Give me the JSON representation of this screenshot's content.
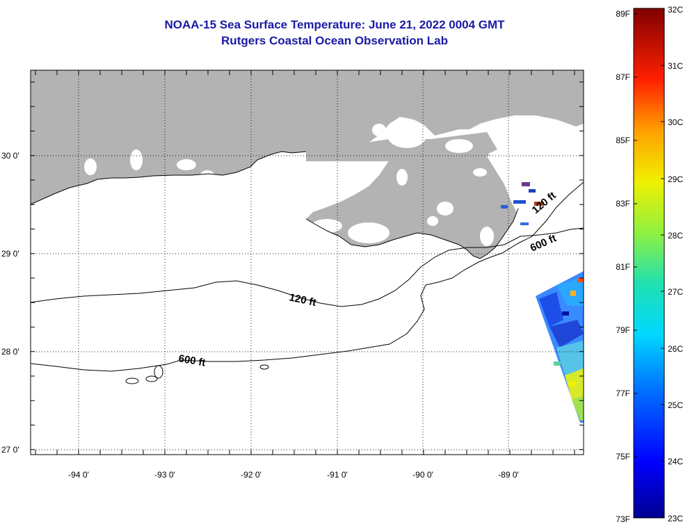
{
  "header": {
    "title": "NOAA-15 Sea Surface Temperature:  June 21, 2022 0004 GMT",
    "subtitle": "Rutgers Coastal Ocean Observation Lab"
  },
  "map": {
    "lon_labels": [
      "-94 0'",
      "-93 0'",
      "-92 0'",
      "-91 0'",
      "-90 0'",
      "-89 0'"
    ],
    "lat_labels": [
      "30 0'",
      "29 0'",
      "28 0'",
      "27 0'"
    ],
    "contour_labels": {
      "c120_west": "120 ft",
      "c600_west": "600 ft",
      "c600_east": "600 ft",
      "c120_east": "120 ft"
    },
    "colors": {
      "land": "#b3b3b3",
      "ocean": "#ffffff",
      "contour": "#000000"
    }
  },
  "colorbar": {
    "fahrenheit_labels": [
      "89F",
      "87F",
      "85F",
      "83F",
      "81F",
      "79F",
      "77F",
      "75F",
      "73F"
    ],
    "celsius_labels": [
      "32C",
      "31C",
      "30C",
      "29C",
      "28C",
      "27C",
      "26C",
      "25C",
      "24C",
      "23C"
    ],
    "range_c": [
      23,
      32
    ],
    "range_f": [
      73,
      89
    ]
  }
}
